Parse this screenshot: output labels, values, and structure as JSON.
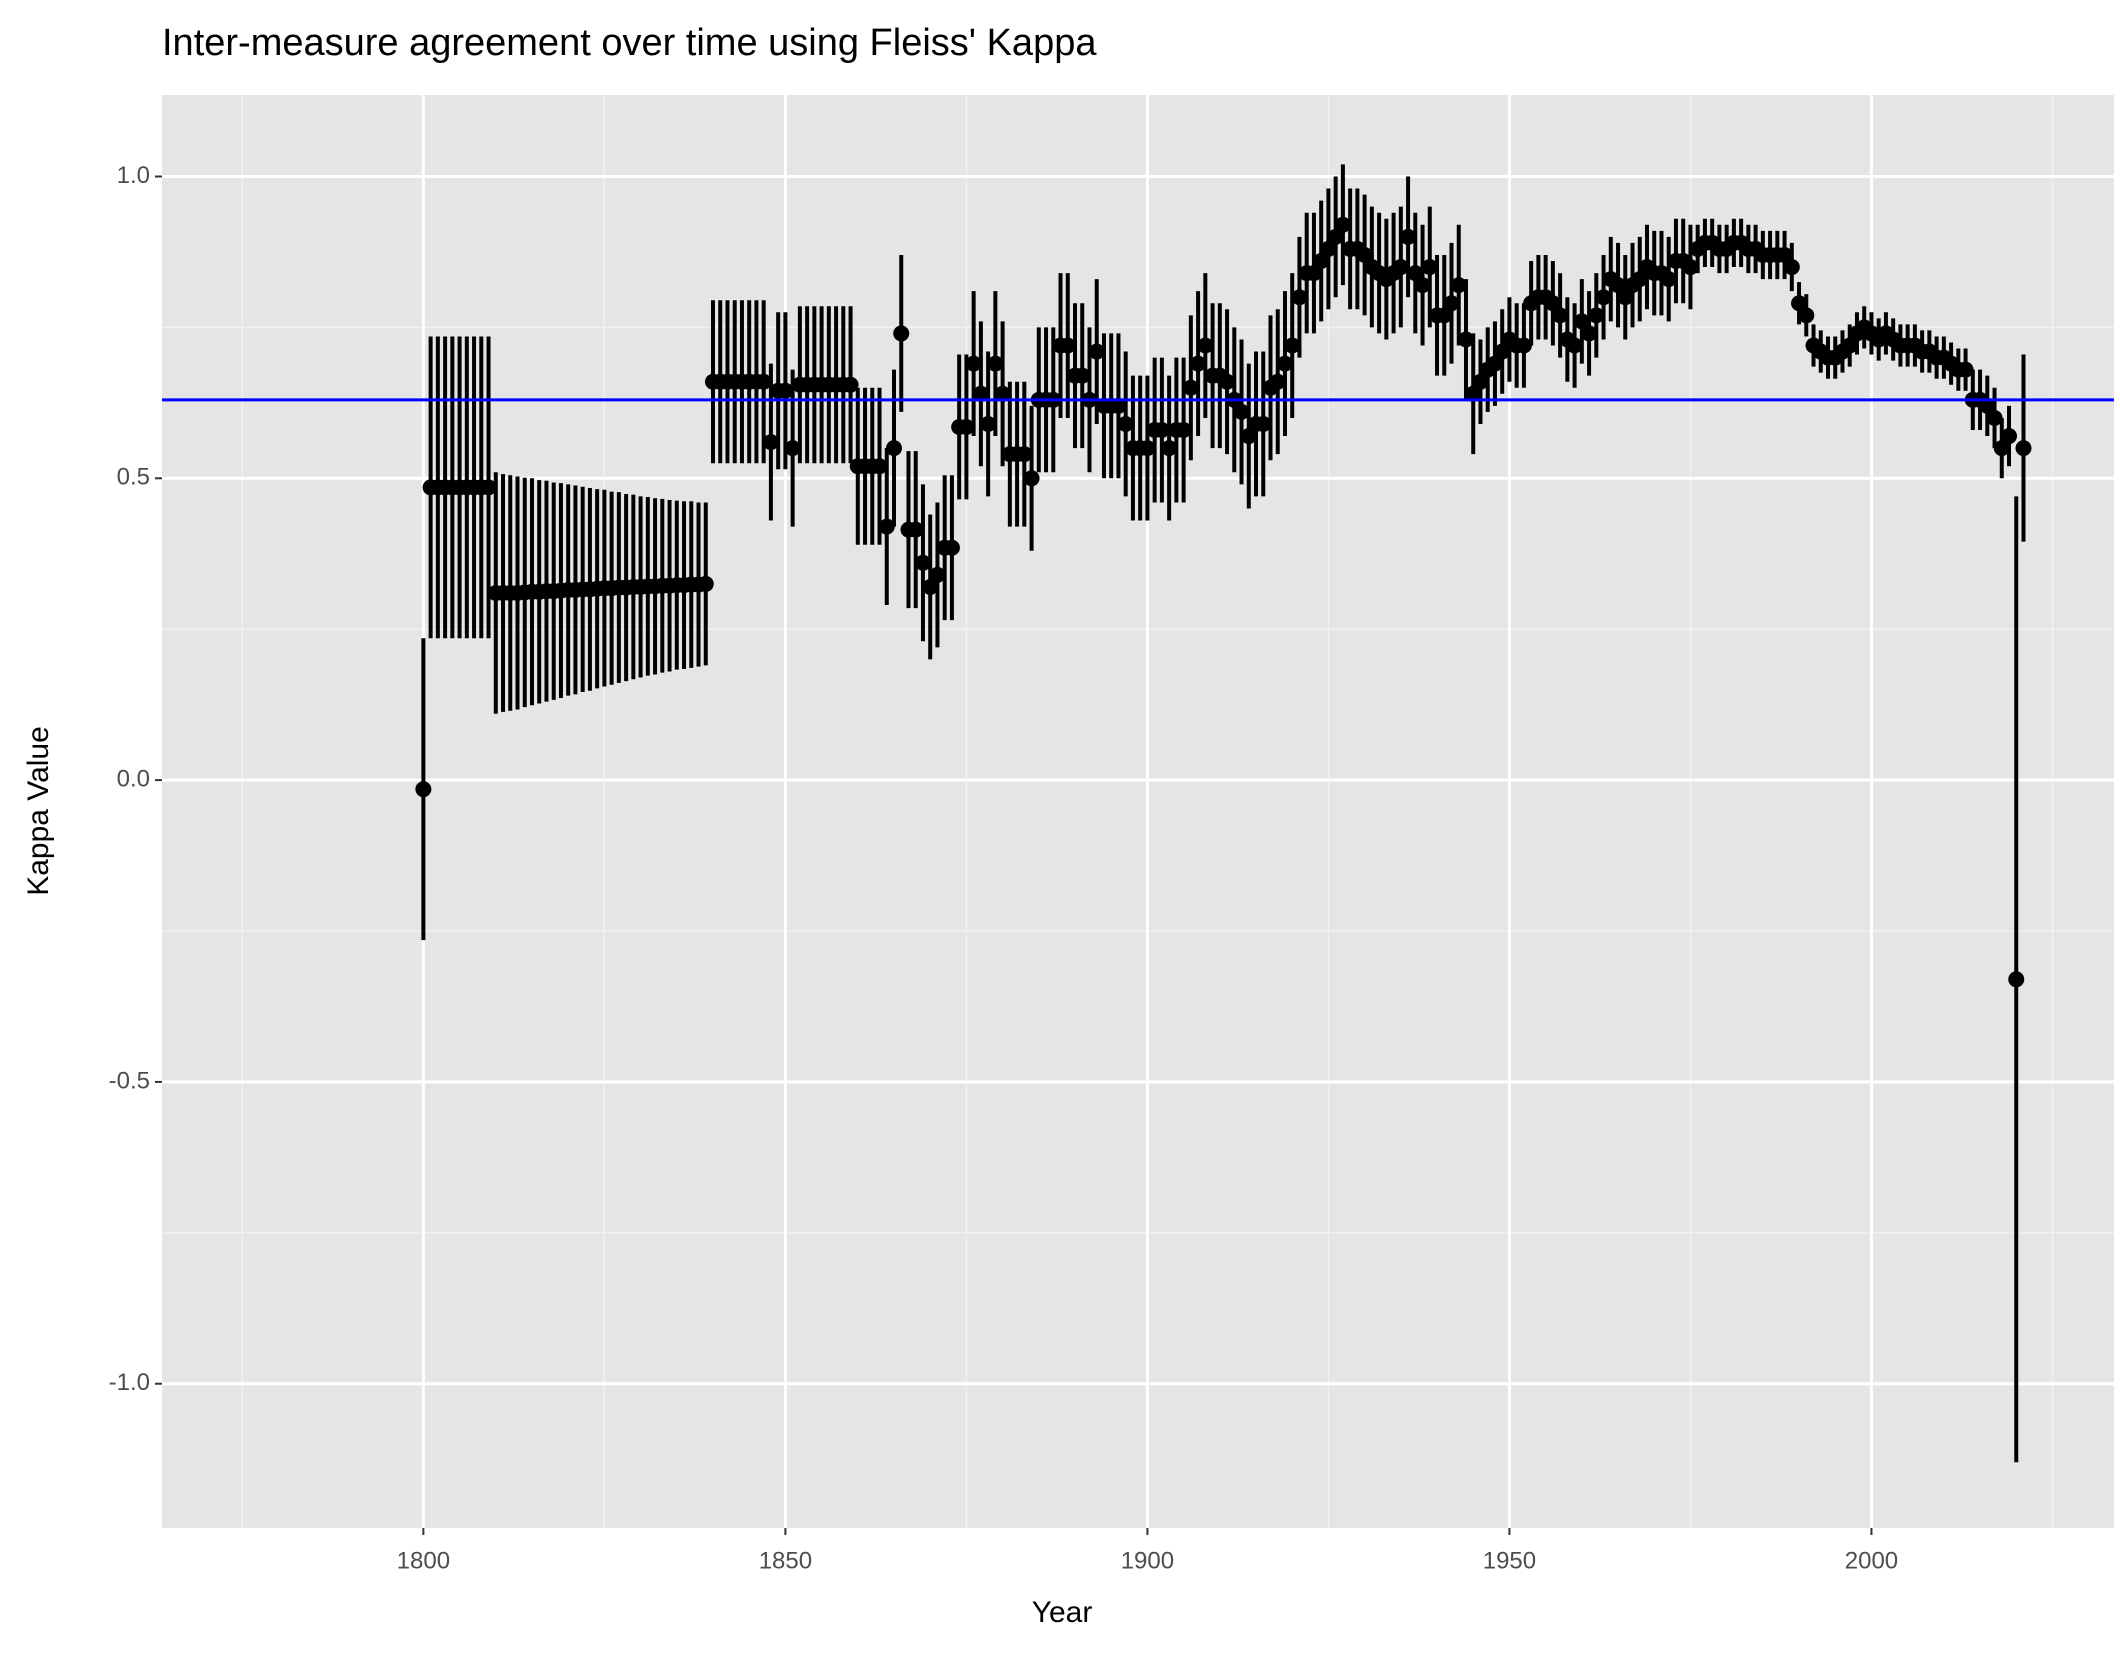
{
  "chart_data": {
    "type": "errorbar",
    "title": "Inter-measure agreement over time using Fleiss' Kappa",
    "x_label": "Year",
    "y_label": "Kappa Value",
    "color": "#000000",
    "background": "#e5e5e5",
    "grid": true,
    "reference_line": {
      "value": 0.63,
      "color": "#0000ff"
    },
    "xlim": [
      1763.9,
      2033.5
    ],
    "ylim": [
      -1.239,
      1.135
    ],
    "xticks": [
      1800,
      1850,
      1900,
      1950,
      2000
    ],
    "yticks": [
      {
        "value": -1,
        "label": "-1.0"
      },
      -0.5,
      {
        "value": 0,
        "label": "0.0"
      },
      0.5,
      {
        "value": 1,
        "label": "1.0"
      }
    ],
    "x_minor_grid": [
      1775,
      1825,
      1875,
      1925,
      1975,
      2025
    ],
    "y_minor_grid": [
      -0.75,
      -0.25,
      0.25,
      0.75
    ],
    "x": [
      1800,
      1801,
      1802,
      1803,
      1804,
      1805,
      1806,
      1807,
      1808,
      1809,
      1810,
      1811,
      1812,
      1813,
      1814,
      1815,
      1816,
      1817,
      1818,
      1819,
      1820,
      1821,
      1822,
      1823,
      1824,
      1825,
      1826,
      1827,
      1828,
      1829,
      1830,
      1831,
      1832,
      1833,
      1834,
      1835,
      1836,
      1837,
      1838,
      1839,
      1840,
      1841,
      1842,
      1843,
      1844,
      1845,
      1846,
      1847,
      1848,
      1849,
      1850,
      1851,
      1852,
      1853,
      1854,
      1855,
      1856,
      1857,
      1858,
      1859,
      1860,
      1861,
      1862,
      1863,
      1864,
      1865,
      1866,
      1867,
      1868,
      1869,
      1870,
      1871,
      1872,
      1873,
      1874,
      1875,
      1876,
      1877,
      1878,
      1879,
      1880,
      1881,
      1882,
      1883,
      1884,
      1885,
      1886,
      1887,
      1888,
      1889,
      1890,
      1891,
      1892,
      1893,
      1894,
      1895,
      1896,
      1897,
      1898,
      1899,
      1900,
      1901,
      1902,
      1903,
      1904,
      1905,
      1906,
      1907,
      1908,
      1909,
      1910,
      1911,
      1912,
      1913,
      1914,
      1915,
      1916,
      1917,
      1918,
      1919,
      1920,
      1921,
      1922,
      1923,
      1924,
      1925,
      1926,
      1927,
      1928,
      1929,
      1930,
      1931,
      1932,
      1933,
      1934,
      1935,
      1936,
      1937,
      1938,
      1939,
      1940,
      1941,
      1942,
      1943,
      1944,
      1945,
      1946,
      1947,
      1948,
      1949,
      1950,
      1951,
      1952,
      1953,
      1954,
      1955,
      1956,
      1957,
      1958,
      1959,
      1960,
      1961,
      1962,
      1963,
      1964,
      1965,
      1966,
      1967,
      1968,
      1969,
      1970,
      1971,
      1972,
      1973,
      1974,
      1975,
      1976,
      1977,
      1978,
      1979,
      1980,
      1981,
      1982,
      1983,
      1984,
      1985,
      1986,
      1987,
      1988,
      1989,
      1990,
      1991,
      1992,
      1993,
      1994,
      1995,
      1996,
      1997,
      1998,
      1999,
      2000,
      2001,
      2002,
      2003,
      2004,
      2005,
      2006,
      2007,
      2008,
      2009,
      2010,
      2011,
      2012,
      2013,
      2014,
      2015,
      2016,
      2017,
      2018,
      2019,
      2020,
      2021
    ],
    "values": [
      -0.015,
      0.485,
      0.485,
      0.485,
      0.485,
      0.485,
      0.485,
      0.485,
      0.485,
      0.485,
      0.31,
      0.31,
      0.31,
      0.31,
      0.311,
      0.312,
      0.312,
      0.313,
      0.313,
      0.314,
      0.315,
      0.315,
      0.316,
      0.316,
      0.317,
      0.318,
      0.318,
      0.319,
      0.319,
      0.32,
      0.32,
      0.321,
      0.321,
      0.322,
      0.322,
      0.323,
      0.323,
      0.324,
      0.324,
      0.325,
      0.66,
      0.66,
      0.66,
      0.66,
      0.66,
      0.66,
      0.66,
      0.66,
      0.56,
      0.645,
      0.645,
      0.55,
      0.655,
      0.655,
      0.655,
      0.655,
      0.655,
      0.655,
      0.655,
      0.655,
      0.52,
      0.52,
      0.52,
      0.52,
      0.42,
      0.55,
      0.74,
      0.415,
      0.415,
      0.36,
      0.32,
      0.34,
      0.385,
      0.385,
      0.585,
      0.585,
      0.69,
      0.64,
      0.59,
      0.69,
      0.64,
      0.54,
      0.54,
      0.54,
      0.5,
      0.63,
      0.63,
      0.63,
      0.72,
      0.72,
      0.67,
      0.67,
      0.63,
      0.71,
      0.62,
      0.62,
      0.62,
      0.59,
      0.55,
      0.55,
      0.55,
      0.58,
      0.58,
      0.55,
      0.58,
      0.58,
      0.65,
      0.69,
      0.72,
      0.67,
      0.67,
      0.66,
      0.63,
      0.61,
      0.57,
      0.59,
      0.59,
      0.65,
      0.66,
      0.69,
      0.72,
      0.8,
      0.84,
      0.84,
      0.86,
      0.88,
      0.9,
      0.92,
      0.88,
      0.88,
      0.87,
      0.85,
      0.84,
      0.83,
      0.84,
      0.85,
      0.9,
      0.84,
      0.82,
      0.85,
      0.77,
      0.77,
      0.79,
      0.82,
      0.73,
      0.64,
      0.66,
      0.68,
      0.69,
      0.71,
      0.73,
      0.72,
      0.72,
      0.79,
      0.8,
      0.8,
      0.79,
      0.77,
      0.73,
      0.72,
      0.76,
      0.74,
      0.77,
      0.8,
      0.83,
      0.82,
      0.8,
      0.82,
      0.83,
      0.85,
      0.84,
      0.84,
      0.83,
      0.86,
      0.86,
      0.85,
      0.88,
      0.89,
      0.89,
      0.88,
      0.88,
      0.89,
      0.89,
      0.88,
      0.88,
      0.87,
      0.87,
      0.87,
      0.87,
      0.85,
      0.79,
      0.77,
      0.72,
      0.71,
      0.7,
      0.7,
      0.71,
      0.72,
      0.74,
      0.75,
      0.74,
      0.73,
      0.74,
      0.73,
      0.72,
      0.72,
      0.72,
      0.71,
      0.71,
      0.7,
      0.7,
      0.69,
      0.68,
      0.68,
      0.63,
      0.63,
      0.62,
      0.6,
      0.55,
      0.57,
      -0.33,
      0.55
    ],
    "errors": [
      0.25,
      0.25,
      0.25,
      0.25,
      0.25,
      0.25,
      0.25,
      0.25,
      0.25,
      0.25,
      0.2,
      0.197,
      0.195,
      0.193,
      0.19,
      0.188,
      0.185,
      0.183,
      0.18,
      0.178,
      0.175,
      0.173,
      0.17,
      0.168,
      0.165,
      0.163,
      0.16,
      0.158,
      0.155,
      0.153,
      0.15,
      0.148,
      0.146,
      0.144,
      0.142,
      0.14,
      0.139,
      0.138,
      0.136,
      0.135,
      0.135,
      0.135,
      0.135,
      0.135,
      0.135,
      0.135,
      0.135,
      0.135,
      0.13,
      0.13,
      0.13,
      0.13,
      0.13,
      0.13,
      0.13,
      0.13,
      0.13,
      0.13,
      0.13,
      0.13,
      0.13,
      0.13,
      0.13,
      0.13,
      0.13,
      0.13,
      0.13,
      0.13,
      0.13,
      0.13,
      0.12,
      0.12,
      0.12,
      0.12,
      0.12,
      0.12,
      0.12,
      0.12,
      0.12,
      0.12,
      0.12,
      0.12,
      0.12,
      0.12,
      0.12,
      0.12,
      0.12,
      0.12,
      0.12,
      0.12,
      0.12,
      0.12,
      0.12,
      0.12,
      0.12,
      0.12,
      0.12,
      0.12,
      0.12,
      0.12,
      0.12,
      0.12,
      0.12,
      0.12,
      0.12,
      0.12,
      0.12,
      0.12,
      0.12,
      0.12,
      0.12,
      0.12,
      0.12,
      0.12,
      0.12,
      0.12,
      0.12,
      0.12,
      0.12,
      0.12,
      0.12,
      0.1,
      0.1,
      0.1,
      0.1,
      0.1,
      0.1,
      0.1,
      0.1,
      0.1,
      0.1,
      0.1,
      0.1,
      0.1,
      0.1,
      0.1,
      0.1,
      0.1,
      0.1,
      0.1,
      0.1,
      0.1,
      0.1,
      0.1,
      0.1,
      0.1,
      0.07,
      0.07,
      0.07,
      0.07,
      0.07,
      0.07,
      0.07,
      0.07,
      0.07,
      0.07,
      0.07,
      0.07,
      0.07,
      0.07,
      0.07,
      0.07,
      0.07,
      0.07,
      0.07,
      0.07,
      0.07,
      0.07,
      0.07,
      0.07,
      0.07,
      0.07,
      0.07,
      0.07,
      0.07,
      0.07,
      0.04,
      0.04,
      0.04,
      0.04,
      0.04,
      0.04,
      0.04,
      0.04,
      0.04,
      0.04,
      0.04,
      0.04,
      0.04,
      0.04,
      0.035,
      0.035,
      0.035,
      0.035,
      0.035,
      0.035,
      0.035,
      0.035,
      0.035,
      0.035,
      0.035,
      0.035,
      0.035,
      0.035,
      0.035,
      0.035,
      0.035,
      0.035,
      0.035,
      0.035,
      0.035,
      0.035,
      0.035,
      0.035,
      0.05,
      0.05,
      0.05,
      0.05,
      0.05,
      0.05,
      0.8,
      0.155
    ]
  }
}
